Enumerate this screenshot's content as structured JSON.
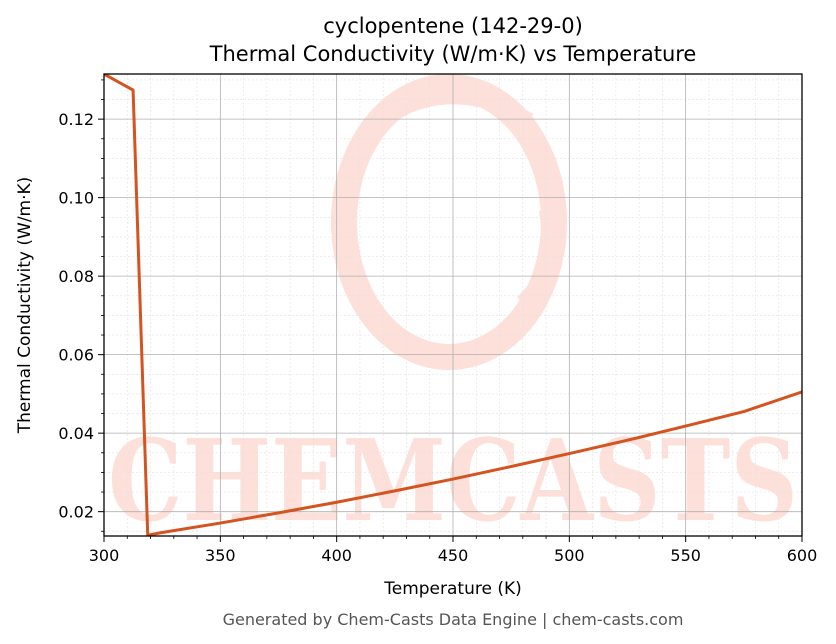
{
  "colors": {
    "line": "#d4531f",
    "watermark": "#fde0da",
    "grid_major": "#b0b0b0",
    "grid_minor": "#e2e2e2",
    "footer_text": "#555555"
  },
  "watermark": {
    "text": "CHEMCASTS",
    "icon": "chemcasts-logo-swirl"
  },
  "footer": "Generated by Chem-Casts Data Engine | chem-casts.com",
  "chart_data": {
    "type": "line",
    "title_line1": "cyclopentene (142-29-0)",
    "title_line2": "Thermal Conductivity (W/m·K) vs Temperature",
    "xlabel": "Temperature (K)",
    "ylabel": "Thermal Conductivity (W/m·K)",
    "xlim": [
      300,
      600
    ],
    "ylim": [
      0.0138,
      0.1315
    ],
    "xticks": [
      300,
      350,
      400,
      450,
      500,
      550,
      600
    ],
    "yticks": [
      0.02,
      0.04,
      0.06,
      0.08,
      0.1,
      0.12
    ],
    "grid": true,
    "legend": "none",
    "series": [
      {
        "x": [
          300,
          312.5,
          318.8,
          325,
          350,
          375,
          400,
          425,
          450,
          475,
          500,
          525,
          550,
          575,
          600
        ],
        "y": [
          0.1315,
          0.1274,
          0.014,
          0.0147,
          0.0171,
          0.0197,
          0.0224,
          0.0253,
          0.0283,
          0.0315,
          0.0348,
          0.0382,
          0.0418,
          0.0455,
          0.0505
        ]
      }
    ]
  }
}
